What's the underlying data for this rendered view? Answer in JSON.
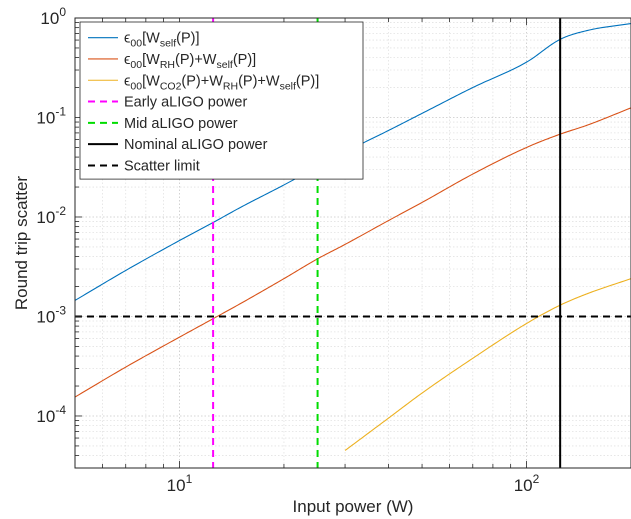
{
  "chart_data": {
    "type": "line",
    "xlabel": "Input power (W)",
    "ylabel": "Round trip scatter",
    "xscale": "log",
    "yscale": "log",
    "xlim": [
      5,
      200
    ],
    "ylim": [
      3e-05,
      1
    ],
    "grid": true,
    "legend_location": "top-left",
    "x_ticks": [
      {
        "value": 10,
        "base": "10",
        "exp": "1"
      },
      {
        "value": 100,
        "base": "10",
        "exp": "2"
      }
    ],
    "y_ticks": [
      {
        "value": 1,
        "base": "10",
        "exp": "0"
      },
      {
        "value": 0.1,
        "base": "10",
        "exp": "-1"
      },
      {
        "value": 0.01,
        "base": "10",
        "exp": "-2"
      },
      {
        "value": 0.001,
        "base": "10",
        "exp": "-3"
      },
      {
        "value": 0.0001,
        "base": "10",
        "exp": "-4"
      }
    ],
    "series": [
      {
        "label_parts": [
          [
            "ϵ",
            ""
          ],
          [
            "00",
            "sub"
          ],
          [
            "[W",
            ""
          ],
          [
            "self",
            "sub"
          ],
          [
            "(P)]",
            ""
          ]
        ],
        "color": "#0072BD",
        "style": "solid",
        "x": [
          5,
          7,
          10,
          12.5,
          15,
          20,
          25,
          30,
          40,
          50,
          70,
          100,
          125,
          150,
          200
        ],
        "y": [
          0.00145,
          0.0029,
          0.0058,
          0.0088,
          0.0125,
          0.021,
          0.032,
          0.045,
          0.074,
          0.11,
          0.2,
          0.36,
          0.61,
          0.75,
          0.88
        ]
      },
      {
        "label_parts": [
          [
            "ϵ",
            ""
          ],
          [
            "00",
            "sub"
          ],
          [
            "[W",
            ""
          ],
          [
            "RH",
            "sub"
          ],
          [
            "(P)+W",
            ""
          ],
          [
            "self",
            "sub"
          ],
          [
            "(P)]",
            ""
          ]
        ],
        "color": "#D95319",
        "style": "solid",
        "x": [
          5,
          7,
          10,
          12.5,
          15,
          20,
          25,
          30,
          40,
          50,
          70,
          100,
          125,
          150,
          200
        ],
        "y": [
          0.000155,
          0.00031,
          0.00062,
          0.00095,
          0.00135,
          0.0024,
          0.0038,
          0.0053,
          0.0092,
          0.014,
          0.027,
          0.05,
          0.068,
          0.084,
          0.125
        ]
      },
      {
        "label_parts": [
          [
            "ϵ",
            ""
          ],
          [
            "00",
            "sub"
          ],
          [
            "[W",
            ""
          ],
          [
            "CO2",
            "sub"
          ],
          [
            "(P)+W",
            ""
          ],
          [
            "RH",
            "sub"
          ],
          [
            "(P)+W",
            ""
          ],
          [
            "self",
            "sub"
          ],
          [
            "(P)]",
            ""
          ]
        ],
        "color": "#EDB120",
        "style": "solid",
        "x": [
          30,
          40,
          50,
          70,
          100,
          125,
          150,
          200
        ],
        "y": [
          4.5e-05,
          9.5e-05,
          0.00017,
          0.00038,
          0.00085,
          0.0013,
          0.0017,
          0.0024
        ]
      },
      {
        "label": "Early aLIGO power",
        "color": "#FF00FF",
        "style": "dashed",
        "vertical_x": 12.5
      },
      {
        "label": "Mid aLIGO power",
        "color": "#00DD00",
        "style": "dashed",
        "vertical_x": 25
      },
      {
        "label": "Nominal aLIGO power",
        "color": "#000000",
        "style": "solid",
        "vertical_x": 125
      },
      {
        "label": "Scatter limit",
        "color": "#000000",
        "style": "dashed",
        "horizontal_y": 0.001
      }
    ]
  }
}
